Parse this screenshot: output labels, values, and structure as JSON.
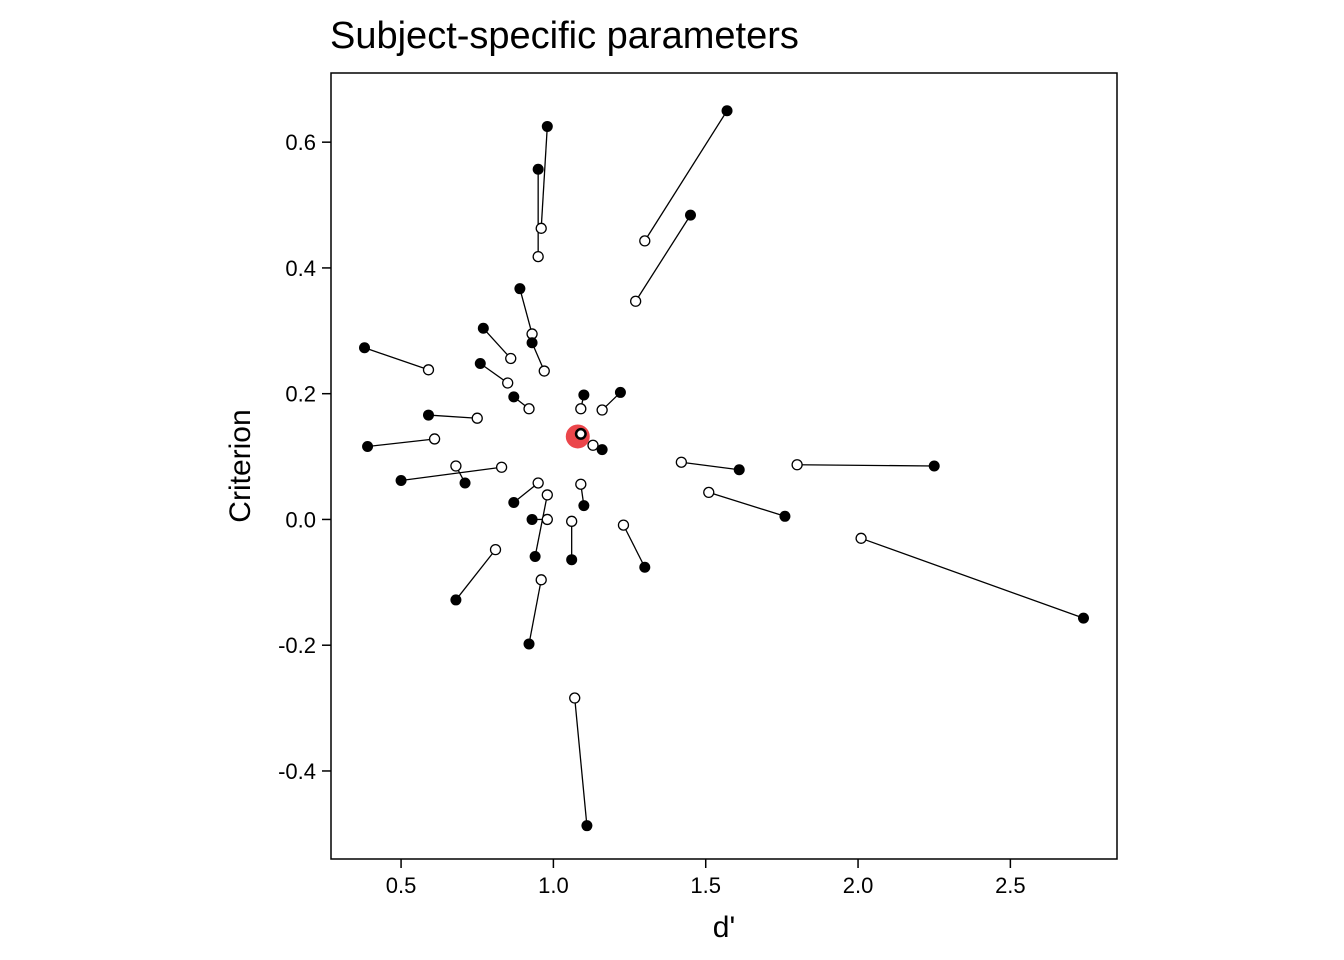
{
  "chart_data": {
    "type": "scatter",
    "title": "Subject-specific parameters",
    "xlabel": "d'",
    "ylabel": "Criterion",
    "xlim": [
      0.27,
      2.85
    ],
    "ylim": [
      -0.54,
      0.71
    ],
    "x_ticks": [
      0.5,
      1.0,
      1.5,
      2.0,
      2.5
    ],
    "x_tick_labels": [
      "0.5",
      "1.0",
      "1.5",
      "2.0",
      "2.5"
    ],
    "y_ticks": [
      -0.4,
      -0.2,
      0.0,
      0.2,
      0.4,
      0.6
    ],
    "y_tick_labels": [
      "-0.4",
      "-0.2",
      "0.0",
      "0.2",
      "0.4",
      "0.6"
    ],
    "grid": false,
    "legend": "none",
    "series": [
      {
        "marker": "filled-black",
        "values": [
          [
            1.57,
            0.65
          ],
          [
            0.98,
            0.625
          ],
          [
            0.95,
            0.557
          ],
          [
            1.45,
            0.484
          ],
          [
            0.89,
            0.367
          ],
          [
            0.77,
            0.304
          ],
          [
            0.38,
            0.273
          ],
          [
            0.93,
            0.281
          ],
          [
            0.76,
            0.248
          ],
          [
            0.87,
            0.195
          ],
          [
            1.1,
            0.198
          ],
          [
            1.22,
            0.202
          ],
          [
            0.59,
            0.166
          ],
          [
            0.39,
            0.116
          ],
          [
            1.16,
            0.111
          ],
          [
            1.61,
            0.079
          ],
          [
            2.25,
            0.085
          ],
          [
            0.5,
            0.062
          ],
          [
            0.71,
            0.058
          ],
          [
            0.87,
            0.027
          ],
          [
            1.1,
            0.022
          ],
          [
            0.93,
            0.0
          ],
          [
            1.76,
            0.005
          ],
          [
            0.94,
            -0.059
          ],
          [
            1.06,
            -0.064
          ],
          [
            1.3,
            -0.076
          ],
          [
            2.74,
            -0.157
          ],
          [
            0.68,
            -0.128
          ],
          [
            0.92,
            -0.198
          ],
          [
            1.11,
            -0.487
          ]
        ]
      },
      {
        "marker": "open-white",
        "values": [
          [
            1.3,
            0.443
          ],
          [
            0.96,
            0.463
          ],
          [
            0.95,
            0.418
          ],
          [
            1.27,
            0.347
          ],
          [
            0.93,
            0.295
          ],
          [
            0.86,
            0.256
          ],
          [
            0.59,
            0.238
          ],
          [
            0.97,
            0.236
          ],
          [
            0.85,
            0.217
          ],
          [
            0.92,
            0.176
          ],
          [
            1.09,
            0.176
          ],
          [
            1.16,
            0.174
          ],
          [
            0.75,
            0.161
          ],
          [
            0.61,
            0.128
          ],
          [
            1.13,
            0.118
          ],
          [
            1.42,
            0.091
          ],
          [
            1.8,
            0.087
          ],
          [
            0.83,
            0.083
          ],
          [
            0.68,
            0.085
          ],
          [
            0.95,
            0.058
          ],
          [
            1.09,
            0.056
          ],
          [
            0.98,
            0.0
          ],
          [
            1.51,
            0.043
          ],
          [
            0.98,
            0.039
          ],
          [
            1.06,
            -0.003
          ],
          [
            1.23,
            -0.009
          ],
          [
            2.01,
            -0.03
          ],
          [
            0.81,
            -0.048
          ],
          [
            0.96,
            -0.096
          ],
          [
            1.07,
            -0.284
          ]
        ]
      }
    ],
    "highlight": {
      "x": 1.08,
      "y": 0.132,
      "color": "#e8262b",
      "marker": "large-red-circle"
    },
    "highlight_inner": {
      "x": 1.09,
      "y": 0.136
    }
  }
}
